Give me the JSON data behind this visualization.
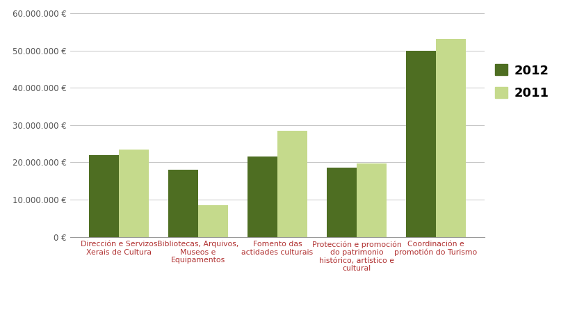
{
  "categories": [
    "Dirección e Servizos\nXerais de Cultura",
    "Bibliotecas, Arquivos,\nMuseos e\nEquipamentos",
    "Fomento das\nactidades culturais",
    "Protección e promoción\ndo patrimonio\nhistórico, artístico e\ncultural",
    "Coordinación e\npromotión do Turismo"
  ],
  "values_2012": [
    22000000,
    18000000,
    21500000,
    18500000,
    50000000
  ],
  "values_2011": [
    23500000,
    8500000,
    28500000,
    19700000,
    53000000
  ],
  "color_2012": "#4e6e22",
  "color_2011": "#c5da8c",
  "ylim": [
    0,
    60000000
  ],
  "yticks": [
    0,
    10000000,
    20000000,
    30000000,
    40000000,
    50000000,
    60000000
  ],
  "legend_labels": [
    "2012",
    "2011"
  ],
  "bar_width": 0.38,
  "background_color": "#ffffff",
  "grid_color": "#bbbbbb",
  "xtick_label_color": "#b03030",
  "ytick_label_color": "#555555",
  "ytick_fontsize": 8.5,
  "xtick_fontsize": 7.8,
  "legend_fontsize": 13
}
